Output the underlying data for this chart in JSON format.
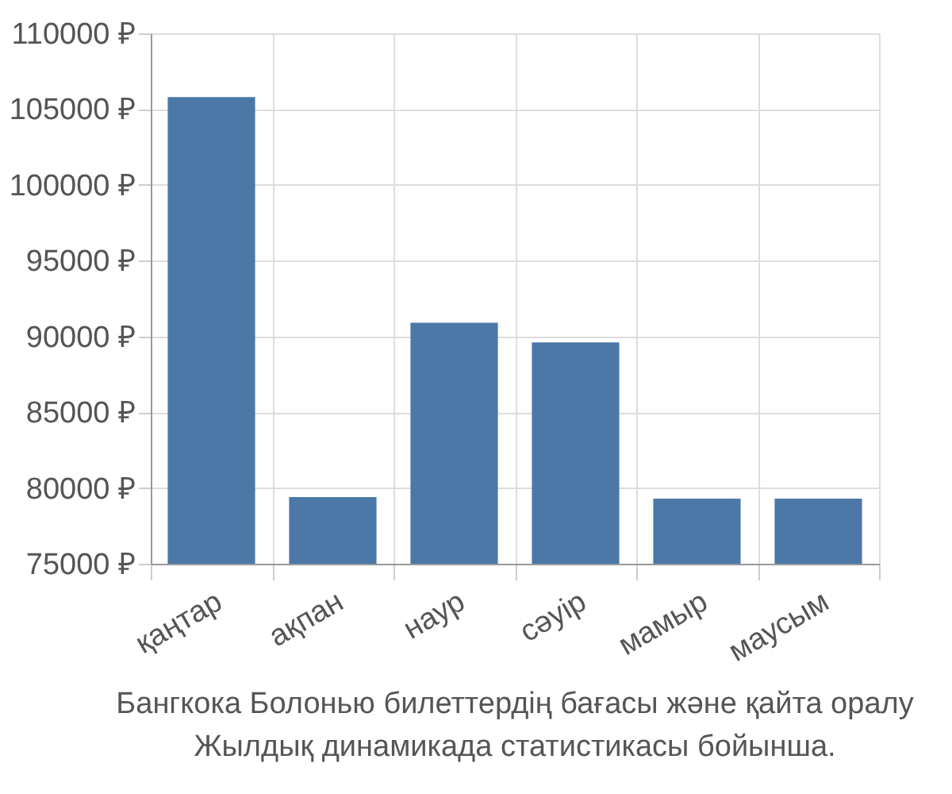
{
  "chart_data": {
    "type": "bar",
    "categories": [
      "қаңтар",
      "ақпан",
      "наур",
      "сәуір",
      "мамыр",
      "маусым"
    ],
    "values": [
      105800,
      79400,
      90900,
      89600,
      79300,
      79300
    ],
    "color": "#4c78a8",
    "ylim": [
      75000,
      110000
    ],
    "yticks": [
      {
        "value": 75000,
        "label": "75000 ₽"
      },
      {
        "value": 80000,
        "label": "80000 ₽"
      },
      {
        "value": 85000,
        "label": "85000 ₽"
      },
      {
        "value": 90000,
        "label": "90000 ₽"
      },
      {
        "value": 95000,
        "label": "95000 ₽"
      },
      {
        "value": 100000,
        "label": "100000 ₽"
      },
      {
        "value": 105000,
        "label": "105000 ₽"
      },
      {
        "value": 110000,
        "label": "110000 ₽"
      }
    ],
    "grid": true,
    "annotations": [
      "Бангкока Болонью билеттердің бағасы және қайта оралу",
      "Жылдық динамикада статистикасы бойынша."
    ]
  }
}
